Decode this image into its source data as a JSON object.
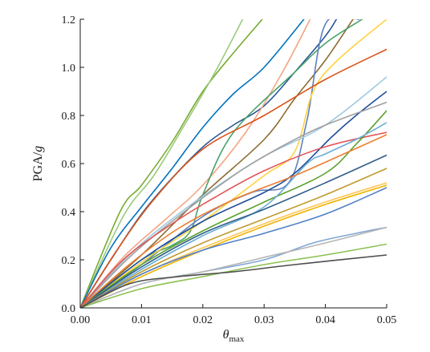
{
  "chart_data": {
    "type": "line",
    "title": "",
    "xlabel": "θ",
    "xlabel_subscript": "max",
    "ylabel": "PGA/",
    "ylabel_italic": "g",
    "xlim": [
      0,
      0.05
    ],
    "ylim": [
      0,
      1.2
    ],
    "x_ticks": [
      0.0,
      0.01,
      0.02,
      0.03,
      0.04,
      0.05
    ],
    "x_tick_labels": [
      "0.00",
      "0.01",
      "0.02",
      "0.03",
      "0.04",
      "0.05"
    ],
    "y_ticks": [
      0,
      0.2,
      0.4,
      0.6,
      0.8,
      1.0,
      1.2
    ],
    "y_tick_labels": [
      "0.0",
      "0.2",
      "0.4",
      "0.6",
      "0.8",
      "1.0",
      "1.2"
    ],
    "grid": false,
    "legend": "none",
    "series": [
      {
        "color": "#77ac30",
        "x": [
          0,
          0.0065,
          0.01,
          0.015,
          0.02,
          0.025,
          0.0297
        ],
        "y": [
          0,
          0.4,
          0.51,
          0.69,
          0.9,
          1.06,
          1.2
        ]
      },
      {
        "color": "#9bc97a",
        "x": [
          0,
          0.007,
          0.012,
          0.017,
          0.022,
          0.0265
        ],
        "y": [
          0,
          0.38,
          0.55,
          0.76,
          0.98,
          1.2
        ]
      },
      {
        "color": "#0072bd",
        "x": [
          0,
          0.005,
          0.01,
          0.015,
          0.02,
          0.025,
          0.03,
          0.0365
        ],
        "y": [
          0,
          0.25,
          0.42,
          0.58,
          0.75,
          0.89,
          1.0,
          1.2
        ]
      },
      {
        "color": "#2b5797",
        "x": [
          0,
          0.005,
          0.01,
          0.015,
          0.0205,
          0.025,
          0.03,
          0.035,
          0.04,
          0.0418
        ],
        "y": [
          0,
          0.2,
          0.39,
          0.54,
          0.68,
          0.76,
          0.84,
          0.98,
          1.13,
          1.2
        ]
      },
      {
        "color": "#f4a582",
        "x": [
          0,
          0.007,
          0.014,
          0.02,
          0.027,
          0.033,
          0.0375
        ],
        "y": [
          0,
          0.21,
          0.37,
          0.51,
          0.73,
          0.98,
          1.2
        ]
      },
      {
        "color": "#8c6d31",
        "x": [
          0,
          0.01,
          0.02,
          0.03,
          0.035,
          0.04,
          0.0445
        ],
        "y": [
          0,
          0.22,
          0.47,
          0.7,
          0.87,
          1.03,
          1.2
        ]
      },
      {
        "color": "#4aa36a",
        "x": [
          0,
          0.01,
          0.015,
          0.018,
          0.02,
          0.025,
          0.035,
          0.04,
          0.046
        ],
        "y": [
          0,
          0.2,
          0.26,
          0.32,
          0.47,
          0.73,
          0.98,
          1.1,
          1.2
        ]
      },
      {
        "color": "#5f7fbf",
        "x": [
          0,
          0.01,
          0.02,
          0.028,
          0.034,
          0.037,
          0.04,
          0.0455
        ],
        "y": [
          0,
          0.18,
          0.38,
          0.48,
          0.52,
          0.78,
          1.18,
          1.2
        ]
      },
      {
        "color": "#ffd23f",
        "x": [
          0,
          0.01,
          0.02,
          0.03,
          0.035,
          0.038,
          0.042,
          0.05
        ],
        "y": [
          0,
          0.19,
          0.36,
          0.55,
          0.65,
          0.9,
          1.03,
          1.2
        ]
      },
      {
        "color": "#d95319",
        "x": [
          0,
          0.006,
          0.012,
          0.02,
          0.03,
          0.04,
          0.05
        ],
        "y": [
          0,
          0.24,
          0.45,
          0.66,
          0.8,
          0.95,
          1.075
        ]
      },
      {
        "color": "#9ecae1",
        "x": [
          0,
          0.008,
          0.015,
          0.022,
          0.03,
          0.04,
          0.05
        ],
        "y": [
          0,
          0.22,
          0.37,
          0.5,
          0.63,
          0.76,
          0.96
        ]
      },
      {
        "color": "#1f4e9a",
        "x": [
          0,
          0.01,
          0.02,
          0.03,
          0.035,
          0.041,
          0.045,
          0.05
        ],
        "y": [
          0,
          0.2,
          0.36,
          0.48,
          0.56,
          0.71,
          0.8,
          0.9
        ]
      },
      {
        "color": "#a0a0a0",
        "x": [
          0,
          0.008,
          0.016,
          0.025,
          0.03,
          0.035,
          0.04,
          0.05
        ],
        "y": [
          0,
          0.21,
          0.38,
          0.55,
          0.63,
          0.7,
          0.76,
          0.855
        ]
      },
      {
        "color": "#e15759",
        "x": [
          0,
          0.007,
          0.015,
          0.022,
          0.03,
          0.04,
          0.05
        ],
        "y": [
          0,
          0.2,
          0.35,
          0.46,
          0.57,
          0.67,
          0.73
        ]
      },
      {
        "color": "#5aa02c",
        "x": [
          0,
          0.01,
          0.02,
          0.03,
          0.04,
          0.045,
          0.05
        ],
        "y": [
          0,
          0.18,
          0.32,
          0.44,
          0.56,
          0.68,
          0.82
        ]
      },
      {
        "color": "#6baed6",
        "x": [
          0,
          0.01,
          0.02,
          0.03,
          0.037,
          0.04,
          0.045,
          0.05
        ],
        "y": [
          0,
          0.16,
          0.3,
          0.42,
          0.6,
          0.64,
          0.7,
          0.77
        ]
      },
      {
        "color": "#ed7d31",
        "x": [
          0,
          0.008,
          0.016,
          0.025,
          0.035,
          0.043,
          0.05
        ],
        "y": [
          0,
          0.18,
          0.33,
          0.45,
          0.55,
          0.64,
          0.72
        ]
      },
      {
        "color": "#2f5d8a",
        "x": [
          0,
          0.01,
          0.02,
          0.03,
          0.04,
          0.05
        ],
        "y": [
          0,
          0.17,
          0.31,
          0.41,
          0.52,
          0.635
        ]
      },
      {
        "color": "#bf9b30",
        "x": [
          0,
          0.01,
          0.02,
          0.03,
          0.04,
          0.05
        ],
        "y": [
          0,
          0.15,
          0.27,
          0.37,
          0.47,
          0.58
        ]
      },
      {
        "color": "#f0b400",
        "x": [
          0,
          0.01,
          0.02,
          0.03,
          0.04,
          0.05
        ],
        "y": [
          0,
          0.13,
          0.24,
          0.34,
          0.43,
          0.51
        ]
      },
      {
        "color": "#ffc658",
        "x": [
          0,
          0.01,
          0.02,
          0.03,
          0.04,
          0.05
        ],
        "y": [
          0,
          0.14,
          0.25,
          0.35,
          0.44,
          0.52
        ]
      },
      {
        "color": "#4f7fc8",
        "x": [
          0,
          0.01,
          0.02,
          0.03,
          0.04,
          0.05
        ],
        "y": [
          0,
          0.14,
          0.24,
          0.31,
          0.39,
          0.5
        ]
      },
      {
        "color": "#7fa7d6",
        "x": [
          0,
          0.01,
          0.02,
          0.03,
          0.038,
          0.045,
          0.05
        ],
        "y": [
          0,
          0.1,
          0.15,
          0.2,
          0.27,
          0.31,
          0.335
        ]
      },
      {
        "color": "#b5b5b5",
        "x": [
          0,
          0.01,
          0.02,
          0.03,
          0.04,
          0.05
        ],
        "y": [
          0,
          0.1,
          0.15,
          0.21,
          0.27,
          0.335
        ]
      },
      {
        "color": "#8cc152",
        "x": [
          0,
          0.01,
          0.02,
          0.03,
          0.04,
          0.05
        ],
        "y": [
          0,
          0.08,
          0.13,
          0.18,
          0.22,
          0.265
        ]
      },
      {
        "color": "#4d4d4d",
        "x": [
          0,
          0.008,
          0.016,
          0.025,
          0.035,
          0.05
        ],
        "y": [
          0,
          0.1,
          0.13,
          0.15,
          0.18,
          0.22
        ]
      }
    ]
  }
}
